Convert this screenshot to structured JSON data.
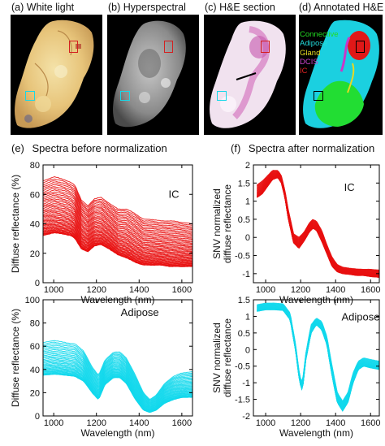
{
  "figure": {
    "panels": [
      {
        "label": "(a)",
        "title": "White light"
      },
      {
        "label": "(b)",
        "title": "Hyperspectral"
      },
      {
        "label": "(c)",
        "title": "H&E section"
      },
      {
        "label": "(d)",
        "title": "Annotated H&E"
      }
    ],
    "legend": [
      {
        "label": "Connective",
        "color": "#22dd22"
      },
      {
        "label": "Adipose",
        "color": "#22dddd"
      },
      {
        "label": "Gland",
        "color": "#e6dc22"
      },
      {
        "label": "DCIS",
        "color": "#cc44cc"
      },
      {
        "label": "IC",
        "color": "#dd2222"
      }
    ],
    "section_e": {
      "label": "(e)",
      "title": "Spectra before normalization"
    },
    "section_f": {
      "label": "(f)",
      "title": "Spectra after normalization"
    },
    "colors": {
      "ic": "#e81010",
      "adipose": "#12d8ec"
    }
  },
  "chart_data": [
    {
      "type": "line",
      "panel": "e-top",
      "annotation": "IC",
      "xlabel": "Wavelength (nm)",
      "ylabel": "Diffuse reflectance (%)",
      "xlim": [
        950,
        1650
      ],
      "ylim": [
        0,
        80
      ],
      "xticks": [
        1000,
        1200,
        1400,
        1600
      ],
      "yticks": [
        0,
        20,
        40,
        60,
        80
      ],
      "x": [
        950,
        1000,
        1050,
        1080,
        1100,
        1130,
        1160,
        1190,
        1220,
        1260,
        1300,
        1340,
        1380,
        1420,
        1460,
        1500,
        1550,
        1600,
        1650
      ],
      "envelope": {
        "upper": [
          69,
          72,
          70,
          68,
          66,
          56,
          52,
          57,
          58,
          54,
          50,
          50,
          47,
          43,
          43,
          42,
          42,
          41,
          40
        ],
        "lower": [
          32,
          34,
          33,
          32,
          30,
          23,
          21,
          25,
          26,
          23,
          19,
          17,
          14,
          12,
          12,
          12,
          11,
          11,
          11
        ]
      }
    },
    {
      "type": "line",
      "panel": "f-top",
      "annotation": "IC",
      "xlabel": "Wavelength (nm)",
      "ylabel": "SNV normalized diffuse reflectance",
      "xlim": [
        930,
        1650
      ],
      "ylim": [
        -1.25,
        2.0
      ],
      "xticks": [
        1000,
        1200,
        1400,
        1600
      ],
      "yticks": [
        -1,
        -0.5,
        0,
        0.5,
        1,
        1.5,
        2
      ],
      "x": [
        950,
        980,
        1010,
        1040,
        1070,
        1090,
        1110,
        1130,
        1160,
        1190,
        1220,
        1250,
        1270,
        1290,
        1320,
        1350,
        1380,
        1410,
        1440,
        1480,
        1520,
        1560,
        1600,
        1650
      ],
      "envelope": {
        "upper": [
          1.45,
          1.55,
          1.7,
          1.85,
          1.85,
          1.7,
          1.3,
          0.75,
          0.1,
          0.0,
          0.15,
          0.4,
          0.5,
          0.45,
          0.2,
          -0.2,
          -0.55,
          -0.75,
          -0.82,
          -0.85,
          -0.87,
          -0.88,
          -0.88,
          -0.9
        ],
        "lower": [
          1.1,
          1.2,
          1.4,
          1.6,
          1.65,
          1.5,
          1.1,
          0.5,
          -0.15,
          -0.3,
          -0.1,
          0.15,
          0.25,
          0.2,
          -0.1,
          -0.45,
          -0.8,
          -0.95,
          -1.0,
          -1.02,
          -1.05,
          -1.05,
          -1.08,
          -1.1
        ]
      }
    },
    {
      "type": "line",
      "panel": "e-bottom",
      "annotation": "Adipose",
      "xlabel": "Wavelength (nm)",
      "ylabel": "Diffuse reflectance (%)",
      "xlim": [
        950,
        1650
      ],
      "ylim": [
        0,
        100
      ],
      "xticks": [
        1000,
        1200,
        1400,
        1600
      ],
      "yticks": [
        0,
        20,
        40,
        60,
        80,
        100
      ],
      "x": [
        950,
        1000,
        1060,
        1100,
        1140,
        1180,
        1210,
        1240,
        1280,
        1310,
        1340,
        1380,
        1420,
        1450,
        1480,
        1520,
        1560,
        1600,
        1650
      ],
      "envelope": {
        "upper": [
          63,
          65,
          63,
          62,
          56,
          42,
          35,
          48,
          55,
          55,
          50,
          36,
          20,
          14,
          18,
          28,
          34,
          37,
          38
        ],
        "lower": [
          35,
          36,
          35,
          34,
          30,
          20,
          14,
          27,
          33,
          33,
          28,
          15,
          5,
          3,
          5,
          11,
          14,
          16,
          16
        ]
      }
    },
    {
      "type": "line",
      "panel": "f-bottom",
      "annotation": "Adipose",
      "xlabel": "Wavelength (nm)",
      "ylabel": "SNV normalized diffuse reflectance",
      "xlim": [
        930,
        1650
      ],
      "ylim": [
        -2.0,
        1.5
      ],
      "xticks": [
        1000,
        1200,
        1400,
        1600
      ],
      "yticks": [
        -2,
        -1.5,
        -1,
        -0.5,
        0,
        0.5,
        1,
        1.5
      ],
      "x": [
        950,
        1000,
        1050,
        1100,
        1140,
        1170,
        1195,
        1210,
        1230,
        1260,
        1290,
        1320,
        1350,
        1380,
        1410,
        1440,
        1470,
        1500,
        1530,
        1560,
        1600,
        1650
      ],
      "envelope": {
        "upper": [
          1.35,
          1.4,
          1.4,
          1.38,
          1.1,
          0.2,
          -0.8,
          -1.0,
          -0.1,
          0.75,
          0.95,
          0.85,
          0.4,
          -0.5,
          -1.3,
          -1.55,
          -1.3,
          -0.7,
          -0.35,
          -0.25,
          -0.3,
          -0.35
        ],
        "lower": [
          1.15,
          1.2,
          1.2,
          1.18,
          0.9,
          0.0,
          -1.0,
          -1.25,
          -0.3,
          0.5,
          0.75,
          0.6,
          0.15,
          -0.8,
          -1.6,
          -1.85,
          -1.6,
          -1.0,
          -0.6,
          -0.5,
          -0.55,
          -0.6
        ]
      }
    }
  ]
}
